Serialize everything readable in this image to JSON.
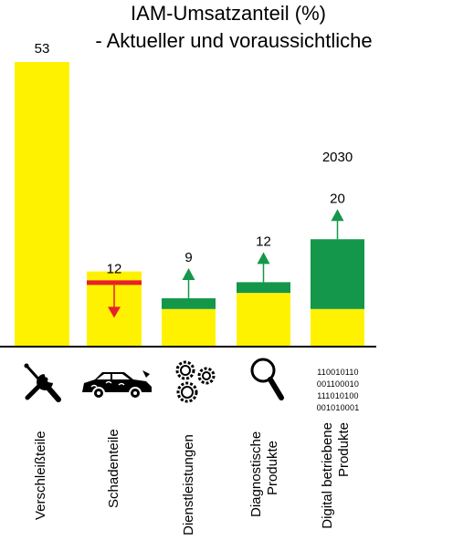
{
  "chart_data": {
    "type": "bar",
    "title": "IAM-Umsatzanteil (%)",
    "subtitle": "- Aktueller und voraussichtliche",
    "annotation": "2030",
    "categories": [
      "Verschleißteile",
      "Schadenteile",
      "Dienstleistungen",
      "Diagnostische Produkte",
      "Digital betriebene Produkte"
    ],
    "current": [
      53,
      14,
      7,
      10,
      7
    ],
    "forecast_2030": [
      53,
      12,
      9,
      12,
      20
    ],
    "data_labels": [
      "53",
      "12",
      "9",
      "12",
      "20"
    ],
    "trend": [
      "none",
      "down",
      "up",
      "up",
      "up"
    ],
    "ylim": [
      0,
      55
    ],
    "colors": {
      "current": "#fff200",
      "growth": "#14974a",
      "decline_line": "#e8202a",
      "down_arrow": "#e8202a",
      "up_arrow": "#14974a"
    }
  },
  "icons": [
    "tools-icon",
    "car-puzzle-icon",
    "gears-icon",
    "magnifier-icon",
    "binary-icon"
  ],
  "binary_lines": [
    "110010110",
    "001100010",
    "111010100",
    "001010001"
  ]
}
